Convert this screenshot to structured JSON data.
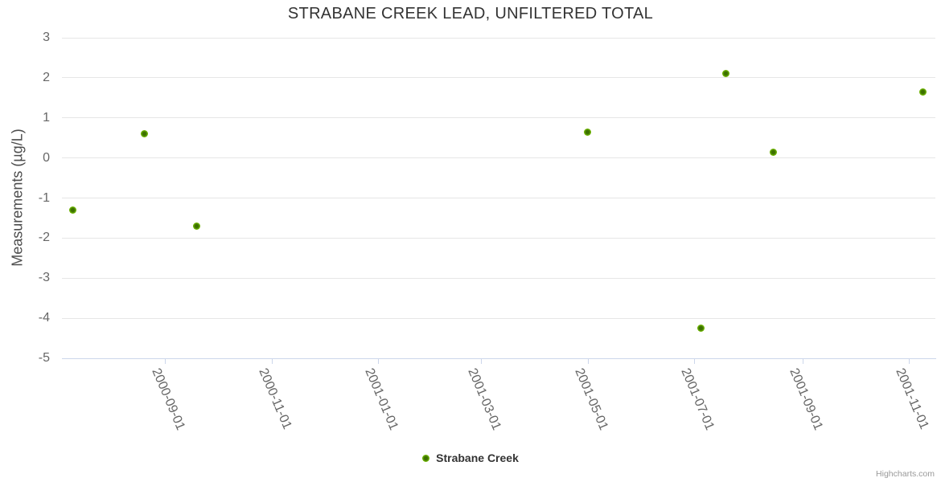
{
  "chart_data": {
    "type": "scatter",
    "title": "STRABANE CREEK LEAD, UNFILTERED TOTAL",
    "xlabel": "",
    "ylabel": "Measurements (µg/L)",
    "ylim": [
      -5,
      3
    ],
    "yticks": [
      3,
      2,
      1,
      0,
      -1,
      -2,
      -3,
      -4,
      -5
    ],
    "xlim": [
      "2000-07-04",
      "2001-11-16"
    ],
    "xticks": [
      "2000-09-01",
      "2000-11-01",
      "2001-01-01",
      "2001-03-01",
      "2001-05-01",
      "2001-07-01",
      "2001-09-01",
      "2001-11-01"
    ],
    "grid": "horizontal-only",
    "legend_position": "bottom-center",
    "series": [
      {
        "name": "Strabane Creek",
        "color": "#6cb200",
        "marker_core_color": "#3c7000",
        "points": [
          {
            "date": "2000-07-10",
            "value": -1.3
          },
          {
            "date": "2000-08-20",
            "value": 0.6
          },
          {
            "date": "2000-09-19",
            "value": -1.7
          },
          {
            "date": "2001-05-01",
            "value": 0.65
          },
          {
            "date": "2001-07-05",
            "value": -4.25
          },
          {
            "date": "2001-07-19",
            "value": 2.1
          },
          {
            "date": "2001-08-15",
            "value": 0.15
          },
          {
            "date": "2001-11-09",
            "value": 1.65
          }
        ]
      }
    ]
  },
  "legend": {
    "items": [
      {
        "label": "Strabane Creek"
      }
    ]
  },
  "credits": {
    "label": "Highcharts.com"
  },
  "colors": {
    "title": "#333333",
    "axis_label": "#666666",
    "grid_line": "#e6e6e6",
    "axis_line": "#ccd6eb",
    "point_green": "#6cb200",
    "point_core_green": "#3c7000",
    "credits": "#999999"
  }
}
